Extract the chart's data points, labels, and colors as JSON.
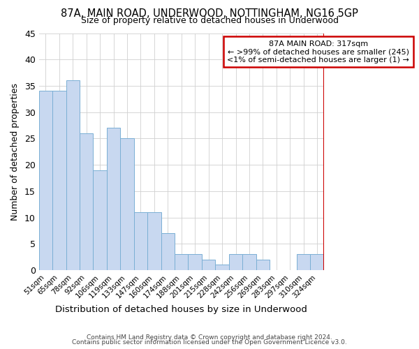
{
  "title1": "87A, MAIN ROAD, UNDERWOOD, NOTTINGHAM, NG16 5GP",
  "title2": "Size of property relative to detached houses in Underwood",
  "xlabel": "Distribution of detached houses by size in Underwood",
  "ylabel": "Number of detached properties",
  "categories": [
    "51sqm",
    "65sqm",
    "78sqm",
    "92sqm",
    "106sqm",
    "119sqm",
    "133sqm",
    "147sqm",
    "160sqm",
    "174sqm",
    "188sqm",
    "201sqm",
    "215sqm",
    "228sqm",
    "242sqm",
    "256sqm",
    "269sqm",
    "283sqm",
    "297sqm",
    "310sqm",
    "324sqm"
  ],
  "values": [
    34,
    34,
    36,
    26,
    19,
    27,
    25,
    11,
    11,
    7,
    3,
    3,
    2,
    1,
    3,
    3,
    2,
    0,
    0,
    3,
    3
  ],
  "bar_color": "#c8d8f0",
  "bar_edge_color": "#7aafd4",
  "vline_color": "#cc0000",
  "annotation_title": "87A MAIN ROAD: 317sqm",
  "annotation_line1": "← >99% of detached houses are smaller (245)",
  "annotation_line2": "<1% of semi-detached houses are larger (1) →",
  "annotation_box_color": "#cc0000",
  "ylim": [
    0,
    45
  ],
  "yticks": [
    0,
    5,
    10,
    15,
    20,
    25,
    30,
    35,
    40,
    45
  ],
  "footer1": "Contains HM Land Registry data © Crown copyright and database right 2024.",
  "footer2": "Contains public sector information licensed under the Open Government Licence v3.0.",
  "bg_color": "#ffffff"
}
